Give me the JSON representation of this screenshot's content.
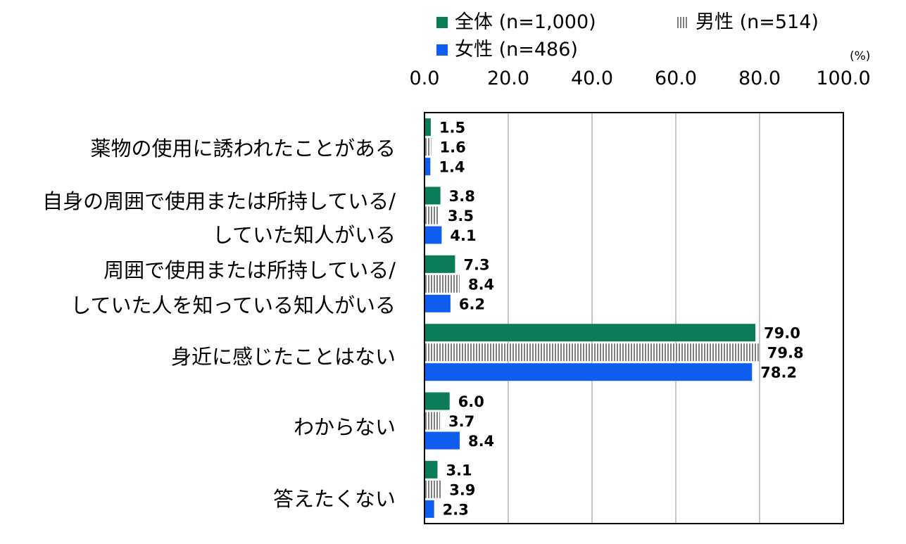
{
  "chart_data": {
    "type": "bar",
    "orientation": "horizontal",
    "unit": "(%)",
    "xlim": [
      0,
      100
    ],
    "xticks": [
      "0.0",
      "20.0",
      "40.0",
      "60.0",
      "80.0",
      "100.0"
    ],
    "grid": true,
    "legend_position": "top",
    "categories": [
      [
        "薬物の使用に誘われたことがある"
      ],
      [
        "自身の周囲で使用または所持している/",
        "していた知人がいる"
      ],
      [
        "周囲で使用または所持している/",
        "していた人を知っている知人がいる"
      ],
      [
        "身近に感じたことはない"
      ],
      [
        "わからない"
      ],
      [
        "答えたくない"
      ]
    ],
    "series": [
      {
        "name": "全体 (n=1,000)",
        "color": "#0a7d58",
        "pattern": "solid",
        "values": [
          1.5,
          3.8,
          7.3,
          79.0,
          6.0,
          3.1
        ],
        "labels": [
          "1.5",
          "3.8",
          "7.3",
          "79.0",
          "6.0",
          "3.1"
        ]
      },
      {
        "name": "男性 (n=514)",
        "color": "#7f7f7f",
        "pattern": "vertical-stripes",
        "values": [
          1.6,
          3.5,
          8.4,
          79.8,
          3.7,
          3.9
        ],
        "labels": [
          "1.6",
          "3.5",
          "8.4",
          "79.8",
          "3.7",
          "3.9"
        ]
      },
      {
        "name": "女性 (n=486)",
        "color": "#0f5ef0",
        "pattern": "solid",
        "values": [
          1.4,
          4.1,
          6.2,
          78.2,
          8.4,
          2.3
        ],
        "labels": [
          "1.4",
          "4.1",
          "6.2",
          "78.2",
          "8.4",
          "2.3"
        ]
      }
    ]
  }
}
